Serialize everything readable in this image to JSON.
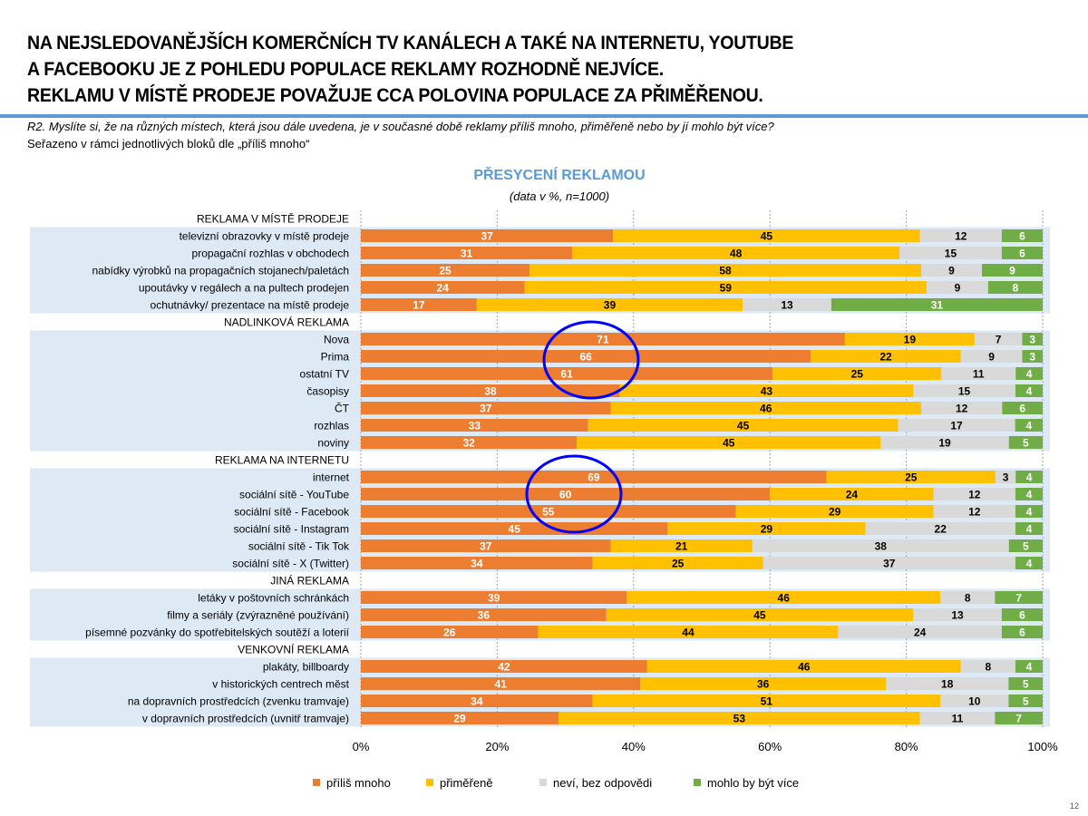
{
  "title_lines": [
    "NA NEJSLEDOVANĚJŠÍCH KOMERČNÍCH TV KANÁLECH A TAKÉ NA INTERNETU, YOUTUBE",
    "A FACEBOOKU JE Z POHLEDU POPULACE REKLAMY ROZHODNĚ NEJVÍCE.",
    "REKLAMU V MÍSTĚ PRODEJE POVAŽUJE CCA POLOVINA POPULACE ZA PŘIMĚŘENOU."
  ],
  "question": "R2. Myslíte si, že na různých místech, která jsou dále uvedena, je v současné době reklamy příliš mnoho, přiměřeně nebo by jí mohlo být více?",
  "sort_note": "Seřazeno v rámci jednotlivých bloků dle „příliš mnoho“",
  "page_number": "12",
  "chart_data": {
    "type": "bar",
    "orientation": "horizontal-stacked-100",
    "title": "PŘESYCENÍ REKLAMOU",
    "subtitle": "(data v %, n=1000)",
    "xlim": [
      0,
      100
    ],
    "x_ticks": [
      "0%",
      "20%",
      "40%",
      "60%",
      "80%",
      "100%"
    ],
    "grid": true,
    "legend_position": "bottom",
    "series": [
      {
        "name": "příliš mnoho",
        "color": "#ed7d31",
        "label_color": "#ffffff"
      },
      {
        "name": "přiměřeně",
        "color": "#ffc000",
        "label_color": "#000000"
      },
      {
        "name": "neví, bez odpovědi",
        "color": "#d9d9d9",
        "label_color": "#000000"
      },
      {
        "name": "mohlo by být více",
        "color": "#70ad47",
        "label_color": "#ffffff"
      }
    ],
    "groups": [
      {
        "name": "REKLAMA V MÍSTĚ PRODEJE",
        "rows": [
          {
            "label": "televizní obrazovky v místě prodeje",
            "values": [
              37,
              45,
              12,
              6
            ]
          },
          {
            "label": "propagační rozhlas v obchodech",
            "values": [
              31,
              48,
              15,
              6
            ]
          },
          {
            "label": "nabídky výrobků na propagačních stojanech/paletách",
            "values": [
              25,
              58,
              9,
              9
            ]
          },
          {
            "label": "upoutávky v regálech a na pultech prodejen",
            "values": [
              24,
              59,
              9,
              8
            ]
          },
          {
            "label": "ochutnávky/ prezentace na místě prodeje",
            "values": [
              17,
              39,
              13,
              31
            ]
          }
        ]
      },
      {
        "name": "NADLINKOVÁ REKLAMA",
        "rows": [
          {
            "label": "Nova",
            "values": [
              71,
              19,
              7,
              3
            ]
          },
          {
            "label": "Prima",
            "values": [
              66,
              22,
              9,
              3
            ]
          },
          {
            "label": "ostatní TV",
            "values": [
              61,
              25,
              11,
              4
            ]
          },
          {
            "label": "časopisy",
            "values": [
              38,
              43,
              15,
              4
            ]
          },
          {
            "label": "ČT",
            "values": [
              37,
              46,
              12,
              6
            ]
          },
          {
            "label": "rozhlas",
            "values": [
              33,
              45,
              17,
              4
            ]
          },
          {
            "label": "noviny",
            "values": [
              32,
              45,
              19,
              5
            ]
          }
        ]
      },
      {
        "name": "REKLAMA NA INTERNETU",
        "rows": [
          {
            "label": "internet",
            "values": [
              69,
              25,
              3,
              4
            ]
          },
          {
            "label": "sociální sítě - YouTube",
            "values": [
              60,
              24,
              12,
              4
            ]
          },
          {
            "label": "sociální sítě - Facebook",
            "values": [
              55,
              29,
              12,
              4
            ]
          },
          {
            "label": "sociální sítě - Instagram",
            "values": [
              45,
              29,
              22,
              4
            ]
          },
          {
            "label": "sociální sítě - Tik Tok",
            "values": [
              37,
              21,
              38,
              5
            ]
          },
          {
            "label": "sociální sítě - X (Twitter)",
            "values": [
              34,
              25,
              37,
              4
            ]
          }
        ]
      },
      {
        "name": "JINÁ REKLAMA",
        "rows": [
          {
            "label": "letáky v poštovních schránkách",
            "values": [
              39,
              46,
              8,
              7
            ]
          },
          {
            "label": "filmy a seriály (zvýrazněné používání)",
            "values": [
              36,
              45,
              13,
              6
            ]
          },
          {
            "label": "písemné pozvánky do spotřebitelských soutěží a loterií",
            "values": [
              26,
              44,
              24,
              6
            ]
          }
        ]
      },
      {
        "name": "VENKOVNÍ REKLAMA",
        "rows": [
          {
            "label": "plakáty, billboardy",
            "values": [
              42,
              46,
              8,
              4
            ]
          },
          {
            "label": "v historických centrech měst",
            "values": [
              41,
              36,
              18,
              5
            ]
          },
          {
            "label": "na dopravních prostředcích (zvenku tramvaje)",
            "values": [
              34,
              51,
              10,
              5
            ]
          },
          {
            "label": "v dopravních prostředcích (uvnitř tramvaje)",
            "values": [
              29,
              53,
              11,
              7
            ]
          }
        ]
      }
    ],
    "annotations": [
      {
        "type": "highlight-ellipse",
        "color": "#0000ff",
        "around": [
          "Nova",
          "Prima",
          "ostatní TV"
        ]
      },
      {
        "type": "highlight-ellipse",
        "color": "#0000ff",
        "around": [
          "internet",
          "sociální sítě - YouTube",
          "sociální sítě - Facebook"
        ]
      }
    ]
  }
}
